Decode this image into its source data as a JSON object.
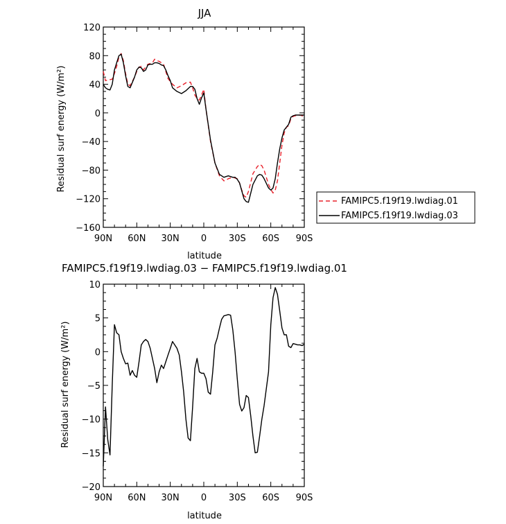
{
  "chart_data": [
    {
      "type": "line",
      "title": "JJA",
      "xlabel": "latitude",
      "ylabel": "Residual surf energy (W/m²)",
      "xlim": [
        90,
        -90
      ],
      "ylim": [
        -160,
        120
      ],
      "x_ticks": [
        {
          "value": 90,
          "label": "90N"
        },
        {
          "value": 60,
          "label": "60N"
        },
        {
          "value": 30,
          "label": "30N"
        },
        {
          "value": 0,
          "label": "0"
        },
        {
          "value": -30,
          "label": "30S"
        },
        {
          "value": -60,
          "label": "60S"
        },
        {
          "value": -90,
          "label": "90S"
        }
      ],
      "y_ticks": [
        120,
        80,
        40,
        0,
        -40,
        -80,
        -120,
        -160
      ],
      "legend_position": "right",
      "series": [
        {
          "name": "FAMIPC5.f19f19.lwdiag.01",
          "color": "#e8202a",
          "dash": "dashed",
          "x": [
            90,
            88,
            86,
            82,
            80,
            78,
            76,
            74,
            72,
            70,
            68,
            66,
            62,
            60,
            58,
            56,
            54,
            50,
            46,
            44,
            42,
            40,
            36,
            32,
            28,
            24,
            20,
            16,
            12,
            10,
            8,
            6,
            4,
            2,
            0,
            -2,
            -6,
            -10,
            -14,
            -18,
            -20,
            -22,
            -26,
            -30,
            -32,
            -34,
            -36,
            -38,
            -40,
            -44,
            -48,
            -50,
            -52,
            -54,
            -58,
            -60,
            -62,
            -64,
            -66,
            -68,
            -70,
            -72,
            -74,
            -76,
            -78,
            -80,
            -82,
            -86,
            -90
          ],
          "y": [
            58,
            45,
            46,
            47,
            55,
            65,
            78,
            83,
            73,
            55,
            40,
            38,
            50,
            58,
            64,
            65,
            60,
            68,
            70,
            75,
            73,
            72,
            68,
            48,
            40,
            35,
            38,
            42,
            43,
            35,
            25,
            20,
            18,
            25,
            33,
            5,
            -40,
            -70,
            -88,
            -95,
            -94,
            -92,
            -90,
            -92,
            -98,
            -108,
            -116,
            -118,
            -110,
            -85,
            -75,
            -72,
            -74,
            -80,
            -100,
            -107,
            -112,
            -108,
            -95,
            -70,
            -45,
            -28,
            -20,
            -18,
            -8,
            -5,
            -4,
            -3,
            -5
          ]
        },
        {
          "name": "FAMIPC5.f19f19.lwdiag.03",
          "color": "#000000",
          "dash": "solid",
          "x": [
            90,
            88,
            86,
            84,
            82,
            80,
            78,
            76,
            74,
            72,
            70,
            68,
            66,
            62,
            60,
            58,
            56,
            54,
            52,
            50,
            48,
            46,
            44,
            42,
            40,
            38,
            36,
            34,
            32,
            30,
            28,
            24,
            20,
            16,
            12,
            10,
            8,
            6,
            4,
            2,
            0,
            -2,
            -6,
            -10,
            -14,
            -18,
            -20,
            -22,
            -26,
            -28,
            -30,
            -32,
            -34,
            -36,
            -38,
            -40,
            -44,
            -48,
            -50,
            -52,
            -54,
            -58,
            -60,
            -62,
            -64,
            -66,
            -68,
            -70,
            -72,
            -74,
            -76,
            -78,
            -80,
            -82,
            -86,
            -90
          ],
          "y": [
            40,
            35,
            33,
            32,
            40,
            60,
            70,
            80,
            82,
            70,
            52,
            37,
            35,
            50,
            60,
            64,
            63,
            58,
            60,
            67,
            68,
            68,
            70,
            70,
            69,
            67,
            66,
            60,
            52,
            45,
            35,
            30,
            27,
            31,
            37,
            37,
            33,
            20,
            12,
            21,
            28,
            5,
            -38,
            -70,
            -86,
            -90,
            -89,
            -88,
            -90,
            -90,
            -93,
            -98,
            -109,
            -120,
            -124,
            -125,
            -100,
            -88,
            -86,
            -87,
            -92,
            -105,
            -108,
            -105,
            -92,
            -70,
            -50,
            -35,
            -24,
            -20,
            -16,
            -6,
            -4,
            -3,
            -3,
            -3
          ]
        }
      ]
    },
    {
      "type": "line",
      "title": "FAMIPC5.f19f19.lwdiag.03 − FAMIPC5.f19f19.lwdiag.01",
      "xlabel": "latitude",
      "ylabel": "Residual surf energy (W/m²)",
      "xlim": [
        90,
        -90
      ],
      "ylim": [
        -20,
        10
      ],
      "x_ticks": [
        {
          "value": 90,
          "label": "90N"
        },
        {
          "value": 60,
          "label": "60N"
        },
        {
          "value": 30,
          "label": "30N"
        },
        {
          "value": 0,
          "label": "0"
        },
        {
          "value": -30,
          "label": "30S"
        },
        {
          "value": -60,
          "label": "60S"
        },
        {
          "value": -90,
          "label": "90S"
        }
      ],
      "y_ticks": [
        10,
        5,
        0,
        -5,
        -10,
        -15,
        -20
      ],
      "series": [
        {
          "color": "#000000",
          "dash": "solid",
          "x": [
            90,
            88,
            86,
            84,
            82,
            80,
            78,
            76,
            74,
            72,
            70,
            68,
            66,
            64,
            62,
            60,
            58,
            56,
            54,
            52,
            50,
            48,
            46,
            44,
            42,
            40,
            38,
            36,
            34,
            32,
            30,
            28,
            26,
            24,
            22,
            20,
            18,
            16,
            14,
            12,
            10,
            8,
            6,
            4,
            2,
            0,
            -2,
            -4,
            -6,
            -8,
            -10,
            -12,
            -14,
            -16,
            -18,
            -20,
            -22,
            -24,
            -26,
            -28,
            -30,
            -32,
            -34,
            -36,
            -38,
            -40,
            -42,
            -44,
            -46,
            -48,
            -50,
            -52,
            -54,
            -56,
            -58,
            -60,
            -62,
            -64,
            -66,
            -68,
            -70,
            -72,
            -74,
            -76,
            -78,
            -80,
            -82,
            -84,
            -86,
            -88,
            -90
          ],
          "y": [
            -17,
            -8.2,
            -13,
            -15.3,
            -5,
            4,
            2.8,
            2.5,
            0,
            -1,
            -1.8,
            -1.7,
            -3.5,
            -2.8,
            -3.5,
            -3.8,
            -1.5,
            1,
            1.5,
            1.8,
            1.5,
            0.5,
            -1,
            -2.5,
            -4.6,
            -3,
            -2,
            -2.5,
            -1.5,
            -0.5,
            0.5,
            1.5,
            1,
            0.5,
            -0.5,
            -3,
            -6,
            -10,
            -12.8,
            -13.2,
            -8.2,
            -2.5,
            -1,
            -3,
            -3.2,
            -3.2,
            -4,
            -6,
            -6.3,
            -3,
            1,
            2,
            3.5,
            4.8,
            5.3,
            5.4,
            5.5,
            5.4,
            3.2,
            0,
            -4,
            -7.8,
            -8.8,
            -8.3,
            -6.5,
            -6.8,
            -9.5,
            -12.5,
            -15,
            -14.9,
            -12.5,
            -10,
            -8,
            -5.5,
            -3,
            4,
            8,
            9.5,
            8.5,
            6,
            3.5,
            2.5,
            2.5,
            0.8,
            0.6,
            1.2,
            1.1,
            1,
            1,
            0.9,
            1.1
          ]
        }
      ]
    }
  ]
}
